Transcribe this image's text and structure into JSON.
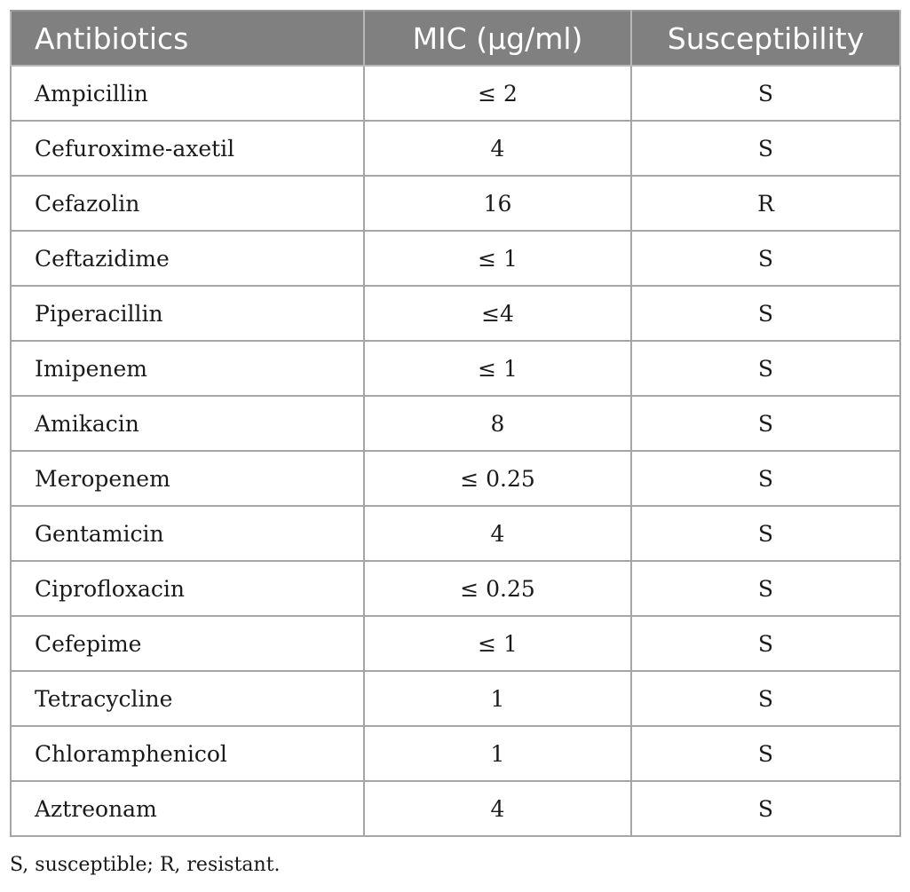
{
  "table": {
    "headers": [
      "Antibiotics",
      "MIC (μg/ml)",
      "Susceptibility"
    ],
    "rows": [
      {
        "antibiotic": "Ampicillin",
        "mic": "≤ 2",
        "susceptibility": "S"
      },
      {
        "antibiotic": "Cefuroxime-axetil",
        "mic": "4",
        "susceptibility": "S"
      },
      {
        "antibiotic": "Cefazolin",
        "mic": "16",
        "susceptibility": "R"
      },
      {
        "antibiotic": "Ceftazidime",
        "mic": "≤ 1",
        "susceptibility": "S"
      },
      {
        "antibiotic": "Piperacillin",
        "mic": "≤4",
        "susceptibility": "S"
      },
      {
        "antibiotic": "Imipenem",
        "mic": "≤ 1",
        "susceptibility": "S"
      },
      {
        "antibiotic": "Amikacin",
        "mic": "8",
        "susceptibility": "S"
      },
      {
        "antibiotic": "Meropenem",
        "mic": "≤ 0.25",
        "susceptibility": "S"
      },
      {
        "antibiotic": "Gentamicin",
        "mic": "4",
        "susceptibility": "S"
      },
      {
        "antibiotic": "Ciprofloxacin",
        "mic": "≤ 0.25",
        "susceptibility": "S"
      },
      {
        "antibiotic": "Cefepime",
        "mic": "≤ 1",
        "susceptibility": "S"
      },
      {
        "antibiotic": "Tetracycline",
        "mic": "1",
        "susceptibility": "S"
      },
      {
        "antibiotic": "Chloramphenicol",
        "mic": "1",
        "susceptibility": "S"
      },
      {
        "antibiotic": "Aztreonam",
        "mic": "4",
        "susceptibility": "S"
      }
    ]
  },
  "footnote": "S, susceptible; R, resistant.",
  "colors": {
    "header_bg": "#808080",
    "header_text": "#ffffff",
    "border": "#a6a6a6"
  }
}
